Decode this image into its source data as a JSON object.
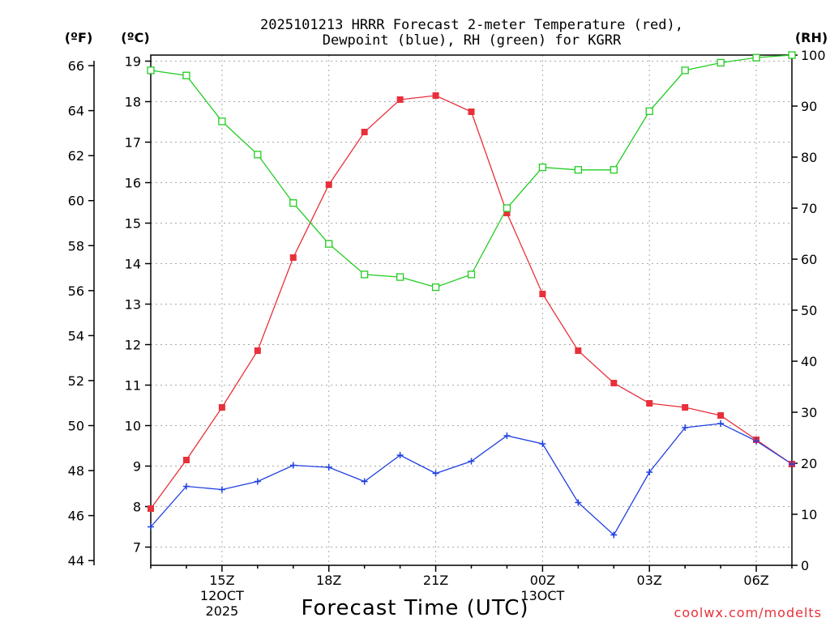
{
  "chart_data": {
    "type": "line",
    "title_line1": "2025101213 HRRR Forecast 2-meter Temperature (red),",
    "title_line2": "Dewpoint (blue), RH (green) for KGRR",
    "xlabel": "Forecast Time (UTC)",
    "credit": "coolwx.com/modelts",
    "units": {
      "f": "(ºF)",
      "c": "(ºC)",
      "rh": "(RH)"
    },
    "x_hours": [
      13,
      14,
      15,
      16,
      17,
      18,
      19,
      20,
      21,
      22,
      23,
      24,
      25,
      26,
      27,
      28,
      29,
      30,
      31
    ],
    "x_ticks": [
      {
        "hour": 15,
        "label": "15Z",
        "sub1": "12OCT",
        "sub2": "2025"
      },
      {
        "hour": 18,
        "label": "18Z",
        "sub1": "",
        "sub2": ""
      },
      {
        "hour": 21,
        "label": "21Z",
        "sub1": "",
        "sub2": ""
      },
      {
        "hour": 24,
        "label": "00Z",
        "sub1": "13OCT",
        "sub2": ""
      },
      {
        "hour": 27,
        "label": "03Z",
        "sub1": "",
        "sub2": ""
      },
      {
        "hour": 30,
        "label": "06Z",
        "sub1": "",
        "sub2": ""
      }
    ],
    "xlim": [
      13,
      31
    ],
    "ylim_c": [
      6.55,
      19.15
    ],
    "y_ticks_c": [
      7,
      8,
      9,
      10,
      11,
      12,
      13,
      14,
      15,
      16,
      17,
      18,
      19
    ],
    "y_ticks_f": [
      44,
      46,
      48,
      50,
      52,
      54,
      56,
      58,
      60,
      62,
      64,
      66
    ],
    "ylim_rh": [
      0,
      100
    ],
    "y_ticks_rh": [
      0,
      10,
      20,
      30,
      40,
      50,
      60,
      70,
      80,
      90,
      100
    ],
    "series": [
      {
        "name": "Temperature",
        "color": "#e8303a",
        "marker": "filled-square",
        "axis": "c",
        "values": [
          7.95,
          9.15,
          10.45,
          11.85,
          14.15,
          15.95,
          17.25,
          18.05,
          18.15,
          17.75,
          15.25,
          13.25,
          11.85,
          11.05,
          10.55,
          10.45,
          10.25,
          9.65,
          9.05
        ]
      },
      {
        "name": "Dewpoint",
        "color": "#2040e0",
        "marker": "plus",
        "axis": "c",
        "values": [
          7.5,
          8.5,
          8.42,
          8.62,
          9.02,
          8.97,
          8.62,
          9.27,
          8.82,
          9.12,
          9.75,
          9.55,
          8.1,
          7.3,
          8.85,
          9.95,
          10.05,
          9.62,
          9.05
        ]
      },
      {
        "name": "RH",
        "color": "#22cc22",
        "marker": "open-square",
        "axis": "rh",
        "values": [
          97,
          96,
          87,
          80.5,
          71,
          63,
          57,
          56.5,
          54.5,
          57,
          70,
          78,
          77.5,
          77.5,
          89,
          97,
          98.5,
          99.5,
          100
        ]
      }
    ]
  }
}
